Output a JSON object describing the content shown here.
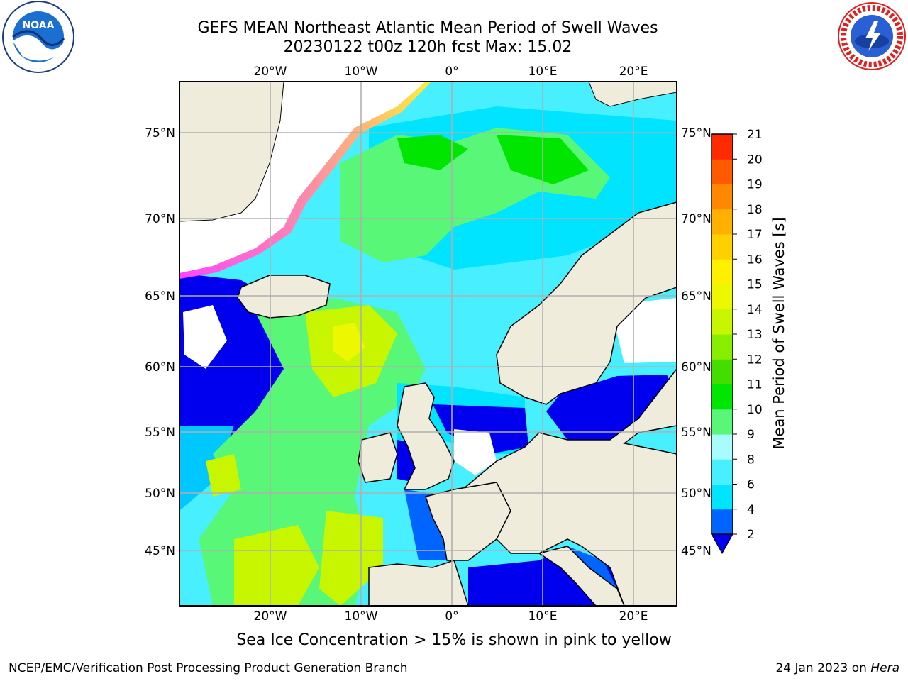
{
  "header": {
    "title_line1": "GEFS MEAN Northeast Atlantic Mean Period of Swell Waves",
    "title_line2": "20230122 t00z 120h fcst   Max: 15.02"
  },
  "logos": {
    "noaa_text": "NOAA",
    "noaa_ring_text": "NATIONAL OCEANIC AND ATMOSPHERIC ADMINISTRATION · U.S. DEPARTMENT OF COMMERCE",
    "nws_ring_text": "NATIONAL WEATHER SERVICE"
  },
  "map": {
    "lon_ticks": [
      "20°W",
      "10°W",
      "0°",
      "10°E",
      "20°E"
    ],
    "lat_ticks": [
      "75°N",
      "70°N",
      "65°N",
      "60°N",
      "55°N",
      "50°N",
      "45°N"
    ],
    "colors": {
      "land": "#efecdc",
      "ice": "#ffffff",
      "grid": "#b0b0b0",
      "coast": "#000000"
    }
  },
  "colorbar": {
    "label": "Mean Period of Swell Waves [s]",
    "ticks": [
      "2",
      "4",
      "6",
      "8",
      "9",
      "10",
      "11",
      "12",
      "13",
      "14",
      "15",
      "16",
      "17",
      "18",
      "19",
      "20",
      "21"
    ],
    "colors": [
      "#0064ff",
      "#00e4ff",
      "#48f0ff",
      "#a8fcff",
      "#58f778",
      "#00e600",
      "#44dd00",
      "#88ee00",
      "#c8f500",
      "#ecf700",
      "#fff000",
      "#ffd000",
      "#ffb000",
      "#ff8800",
      "#ff5a00",
      "#ff2a00"
    ],
    "under_color": "#0000ee"
  },
  "notes": {
    "sea_ice": "Sea Ice Concentration > 15% is shown in pink to yellow"
  },
  "footer": {
    "left": "NCEP/EMC/Verification Post Processing Product Generation Branch",
    "right_date": "24 Jan 2023 on ",
    "right_machine": "Hera"
  }
}
